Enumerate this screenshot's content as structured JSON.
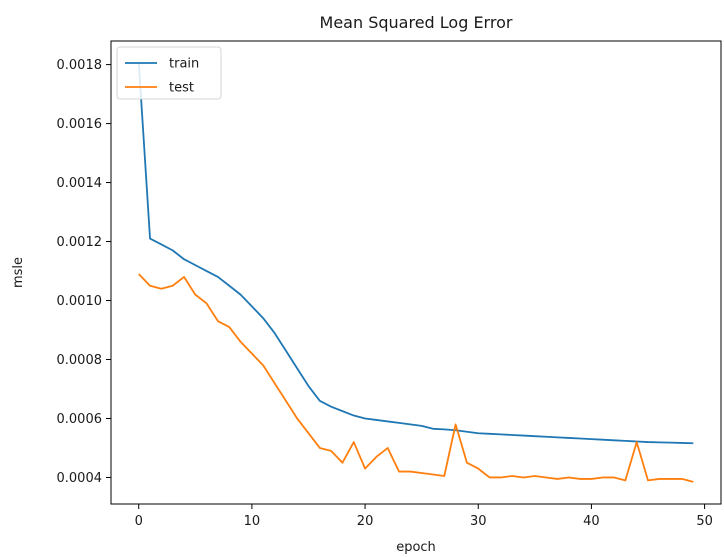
{
  "chart_data": {
    "type": "line",
    "title": "Mean Squared Log Error",
    "xlabel": "epoch",
    "ylabel": "msle",
    "xlim": [
      -2.45,
      51.45
    ],
    "ylim": [
      0.00031,
      0.00188
    ],
    "xticks": [
      0,
      10,
      20,
      30,
      40,
      50
    ],
    "xtick_labels": [
      "0",
      "10",
      "20",
      "30",
      "40",
      "50"
    ],
    "yticks": [
      0.0004,
      0.0006,
      0.0008,
      0.001,
      0.0012,
      0.0014,
      0.0016,
      0.0018
    ],
    "ytick_labels": [
      "0.0004",
      "0.0006",
      "0.0008",
      "0.0010",
      "0.0012",
      "0.0014",
      "0.0016",
      "0.0018"
    ],
    "legend_position": "top-left",
    "grid": false,
    "x": [
      0,
      1,
      2,
      3,
      4,
      5,
      6,
      7,
      8,
      9,
      10,
      11,
      12,
      13,
      14,
      15,
      16,
      17,
      18,
      19,
      20,
      21,
      22,
      23,
      24,
      25,
      26,
      27,
      28,
      29,
      30,
      31,
      32,
      33,
      34,
      35,
      36,
      37,
      38,
      39,
      40,
      41,
      42,
      43,
      44,
      45,
      46,
      47,
      48,
      49
    ],
    "series": [
      {
        "name": "train",
        "color": "#1f77b4",
        "values": [
          0.00181,
          0.00121,
          0.00119,
          0.00117,
          0.00114,
          0.00112,
          0.0011,
          0.00108,
          0.00105,
          0.00102,
          0.00098,
          0.00094,
          0.00089,
          0.00083,
          0.00077,
          0.00071,
          0.00066,
          0.00064,
          0.000625,
          0.00061,
          0.0006,
          0.000595,
          0.00059,
          0.000585,
          0.00058,
          0.000575,
          0.000565,
          0.000563,
          0.00056,
          0.000555,
          0.00055,
          0.000548,
          0.000546,
          0.000544,
          0.000542,
          0.00054,
          0.000538,
          0.000536,
          0.000534,
          0.000532,
          0.00053,
          0.000528,
          0.000526,
          0.000524,
          0.000522,
          0.00052,
          0.000519,
          0.000518,
          0.000517,
          0.000516
        ]
      },
      {
        "name": "test",
        "color": "#ff7f0e",
        "values": [
          0.00109,
          0.00105,
          0.00104,
          0.00105,
          0.00108,
          0.00102,
          0.00099,
          0.00093,
          0.00091,
          0.00086,
          0.00082,
          0.00078,
          0.00072,
          0.00066,
          0.0006,
          0.00055,
          0.0005,
          0.00049,
          0.00045,
          0.00052,
          0.00043,
          0.00047,
          0.0005,
          0.00042,
          0.00042,
          0.000415,
          0.00041,
          0.000405,
          0.00058,
          0.00045,
          0.00043,
          0.0004,
          0.0004,
          0.000405,
          0.0004,
          0.000405,
          0.0004,
          0.000395,
          0.0004,
          0.000395,
          0.000395,
          0.0004,
          0.0004,
          0.00039,
          0.00052,
          0.00039,
          0.000395,
          0.000395,
          0.000395,
          0.000385
        ]
      }
    ]
  }
}
